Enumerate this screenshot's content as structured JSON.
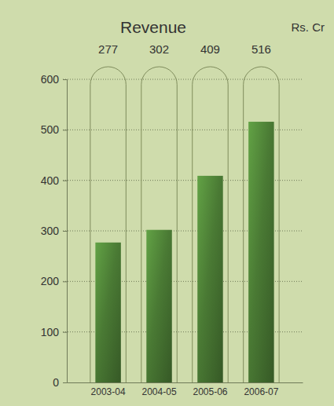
{
  "chart_data": {
    "type": "bar",
    "title": "Revenue",
    "ylabel": "Rs. Cr",
    "categories": [
      "2003-04",
      "2004-05",
      "2005-06",
      "2006-07"
    ],
    "values": [
      277,
      302,
      409,
      516
    ],
    "color": "#4a7a34",
    "ylim": [
      0,
      600
    ],
    "yticks": [
      0,
      100,
      200,
      300,
      400,
      500,
      600
    ],
    "grid": true,
    "data_labels": true
  }
}
